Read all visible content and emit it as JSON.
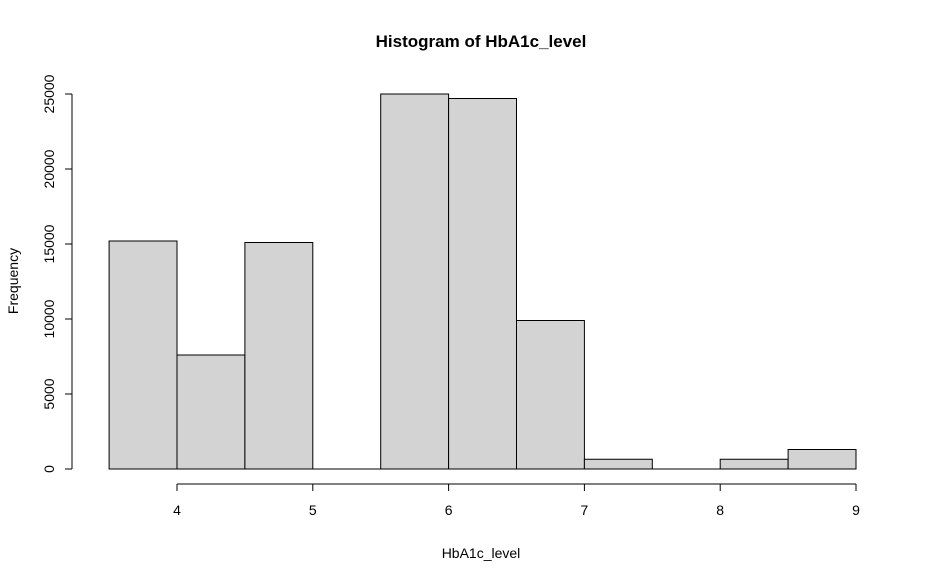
{
  "chart_data": {
    "type": "bar",
    "title": "Histogram of HbA1c_level",
    "xlabel": "HbA1c_level",
    "ylabel": "Frequency",
    "bins": [
      {
        "x0": 3.5,
        "x1": 4.0,
        "count": 15200
      },
      {
        "x0": 4.0,
        "x1": 4.5,
        "count": 7600
      },
      {
        "x0": 4.5,
        "x1": 5.0,
        "count": 15100
      },
      {
        "x0": 5.0,
        "x1": 5.5,
        "count": 0
      },
      {
        "x0": 5.5,
        "x1": 6.0,
        "count": 25000
      },
      {
        "x0": 6.0,
        "x1": 6.5,
        "count": 24700
      },
      {
        "x0": 6.5,
        "x1": 7.0,
        "count": 9900
      },
      {
        "x0": 7.0,
        "x1": 7.5,
        "count": 650
      },
      {
        "x0": 7.5,
        "x1": 8.0,
        "count": 0
      },
      {
        "x0": 8.0,
        "x1": 8.5,
        "count": 650
      },
      {
        "x0": 8.5,
        "x1": 9.0,
        "count": 1300
      }
    ],
    "xlim": [
      3.5,
      9.0
    ],
    "ylim": [
      0,
      25000
    ],
    "x_ticks": [
      4,
      5,
      6,
      7,
      8,
      9
    ],
    "y_ticks": [
      0,
      5000,
      10000,
      15000,
      20000,
      25000
    ],
    "bar_color": "#d3d3d3",
    "grid": false,
    "legend": false
  }
}
